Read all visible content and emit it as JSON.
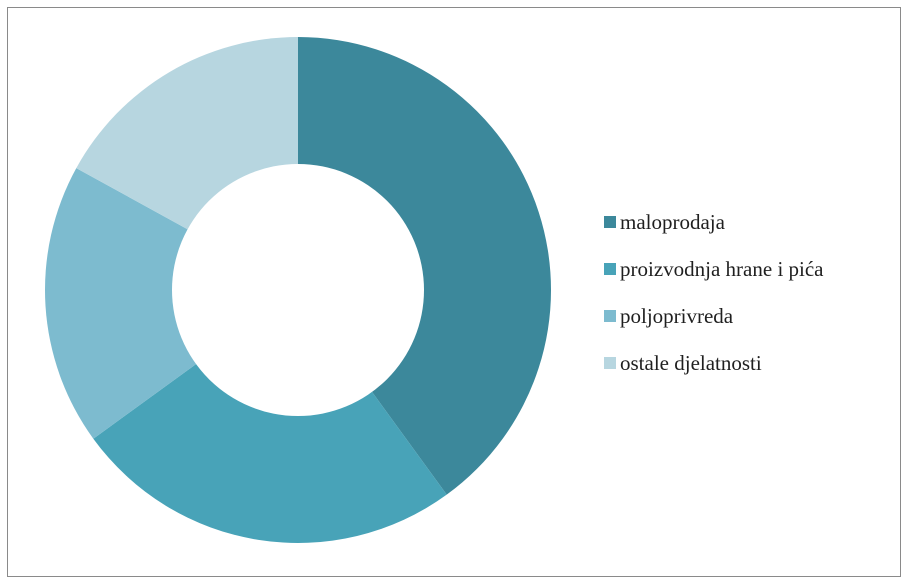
{
  "chart_data": {
    "type": "pie",
    "variant": "donut",
    "categories": [
      "maloprodaja",
      "proizvodnja hrane i pića",
      "poljoprivreda",
      "ostale djelatnosti"
    ],
    "values": [
      40,
      25,
      18,
      17
    ],
    "unit": "%",
    "colors": [
      "#3c889b",
      "#48a3b8",
      "#7dbbcf",
      "#b7d6e0"
    ],
    "legend_position": "right",
    "title": "",
    "start_angle": "top",
    "direction": "clockwise"
  }
}
